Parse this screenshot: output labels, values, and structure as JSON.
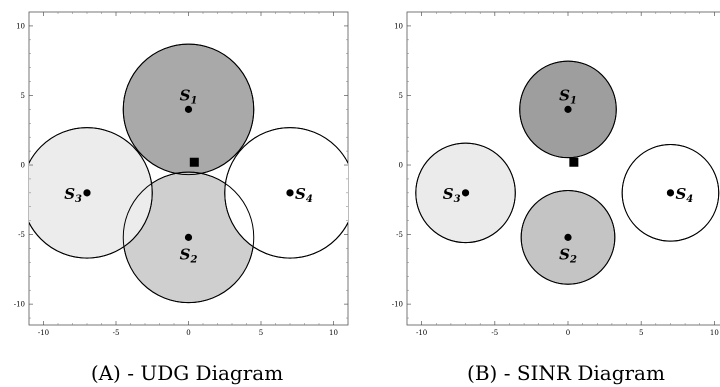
{
  "panels": [
    {
      "id": "udg",
      "caption": "(A) - UDG Diagram",
      "xlim": [
        -11,
        11
      ],
      "ylim": [
        -11.5,
        11
      ],
      "xticks": [
        -10,
        -5,
        0,
        5,
        10
      ],
      "yticks": [
        -10,
        -5,
        0,
        5,
        10
      ],
      "nodes": [
        {
          "base": "S",
          "sub": "1",
          "x": 0,
          "y": 4,
          "r": 4.5,
          "fill": "#a9a9a9",
          "label_pos": "above"
        },
        {
          "base": "S",
          "sub": "2",
          "x": 0,
          "y": -5.2,
          "r": 4.5,
          "fill": "#cfcfcf",
          "label_pos": "below"
        },
        {
          "base": "S",
          "sub": "3",
          "x": -7,
          "y": -2,
          "r": 4.5,
          "fill": "#ececec",
          "label_pos": "left"
        },
        {
          "base": "S",
          "sub": "4",
          "x": 7,
          "y": -2,
          "r": 4.5,
          "fill": "#ffffff",
          "label_pos": "right"
        }
      ],
      "square": {
        "x": 0.4,
        "y": 0.2
      }
    },
    {
      "id": "sinr",
      "caption": "(B) - SINR Diagram",
      "xlim": [
        -11,
        11
      ],
      "ylim": [
        -11.5,
        11
      ],
      "xticks": [
        -10,
        -5,
        0,
        5,
        10
      ],
      "yticks": [
        -10,
        -5,
        0,
        5,
        10
      ],
      "nodes": [
        {
          "base": "S",
          "sub": "1",
          "x": 0,
          "y": 4,
          "r": 3.3,
          "fill": "#9e9e9e",
          "label_pos": "above"
        },
        {
          "base": "S",
          "sub": "2",
          "x": 0,
          "y": -5.2,
          "r": 3.2,
          "fill": "#c4c4c4",
          "label_pos": "below"
        },
        {
          "base": "S",
          "sub": "3",
          "x": -7,
          "y": -2,
          "r": 3.4,
          "fill": "#ebebeb",
          "label_pos": "left"
        },
        {
          "base": "S",
          "sub": "4",
          "x": 7,
          "y": -2,
          "r": 3.3,
          "fill": "#ffffff",
          "label_pos": "right"
        }
      ],
      "square": {
        "x": 0.4,
        "y": 0.2
      }
    }
  ]
}
